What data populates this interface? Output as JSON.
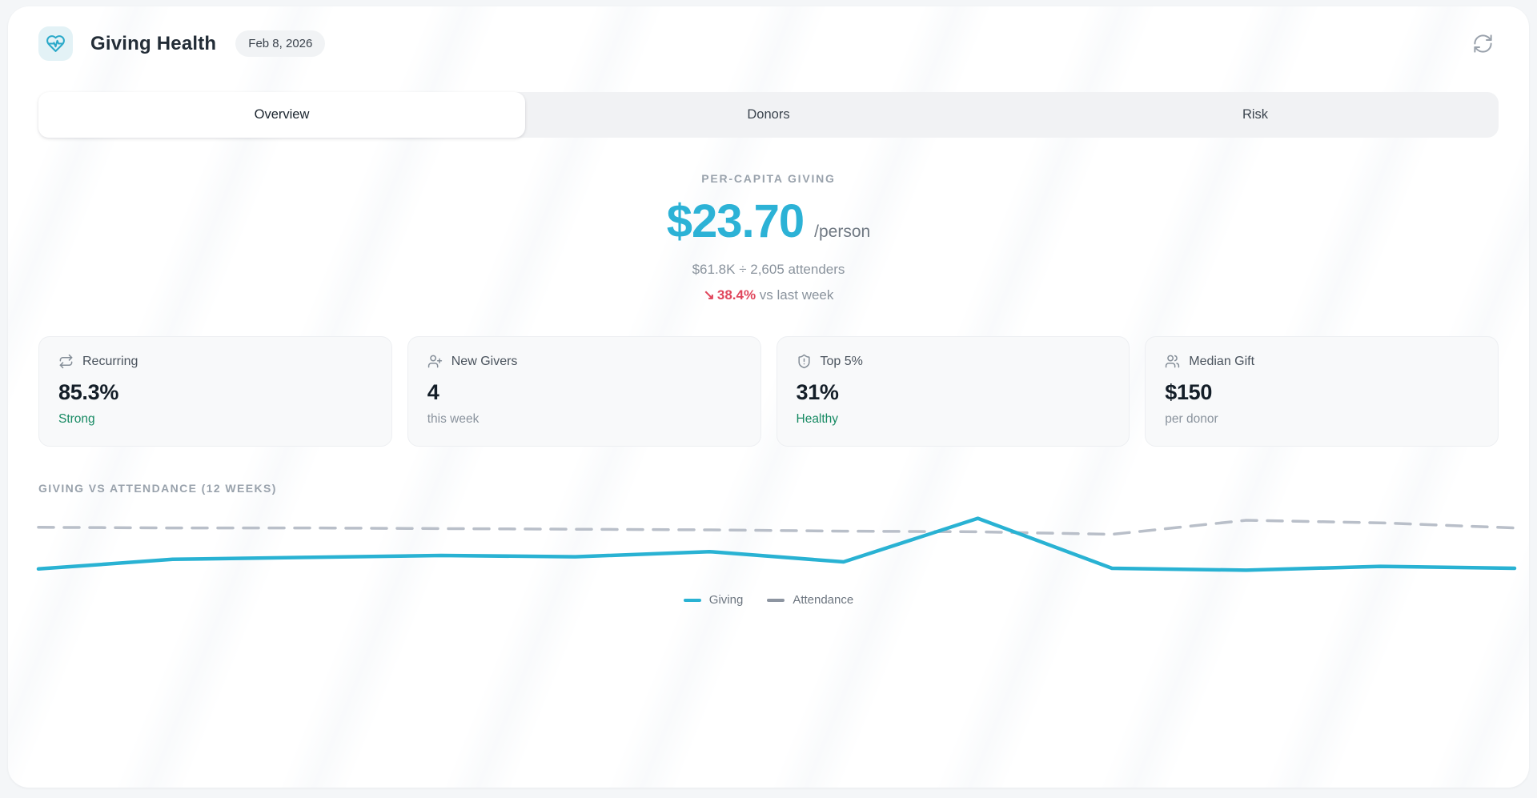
{
  "header": {
    "title": "Giving Health",
    "date_badge": "Feb 8, 2026"
  },
  "tabs": [
    {
      "label": "Overview",
      "active": true
    },
    {
      "label": "Donors",
      "active": false
    },
    {
      "label": "Risk",
      "active": false
    }
  ],
  "hero": {
    "label": "PER-CAPITA GIVING",
    "value": "$23.70",
    "unit": "/person",
    "formula": "$61.8K ÷ 2,605 attenders",
    "delta_arrow": "↘",
    "delta_value": "38.4%",
    "delta_suffix": "vs last week"
  },
  "stat_cards": [
    {
      "icon": "repeat-icon",
      "label": "Recurring",
      "value": "85.3%",
      "sub": "Strong",
      "sub_tone": "positive"
    },
    {
      "icon": "user-plus-icon",
      "label": "New Givers",
      "value": "4",
      "sub": "this week",
      "sub_tone": "muted"
    },
    {
      "icon": "shield-alert-icon",
      "label": "Top 5%",
      "value": "31%",
      "sub": "Healthy",
      "sub_tone": "positive"
    },
    {
      "icon": "users-icon",
      "label": "Median Gift",
      "value": "$150",
      "sub": "per donor",
      "sub_tone": "muted"
    }
  ],
  "chart_data": {
    "type": "line",
    "title": "GIVING VS ATTENDANCE (12 WEEKS)",
    "x": [
      1,
      2,
      3,
      4,
      5,
      6,
      7,
      8,
      9,
      10,
      11,
      12
    ],
    "series": [
      {
        "name": "Giving",
        "style": "solid",
        "color": "#29b2d3",
        "legend_color": "#29b2d3",
        "values": [
          9,
          24,
          27,
          30,
          28,
          36,
          20,
          88,
          10,
          7,
          13,
          10
        ]
      },
      {
        "name": "Attendance",
        "style": "dashed",
        "color": "#b9bfc9",
        "legend_color": "#8d95a1",
        "values": [
          74,
          73,
          73,
          72,
          71,
          70,
          68,
          67,
          63,
          85,
          81,
          73
        ]
      }
    ],
    "ylim": [
      0,
      100
    ],
    "grid": false,
    "axis_ticks_visible": false,
    "legend_position": "bottom"
  },
  "colors": {
    "accent_teal": "#2cb2d6",
    "negative_red": "#e0465c",
    "positive_green": "#178a63",
    "muted_text": "#8a939d",
    "card_bg": "#f8f9fa"
  }
}
